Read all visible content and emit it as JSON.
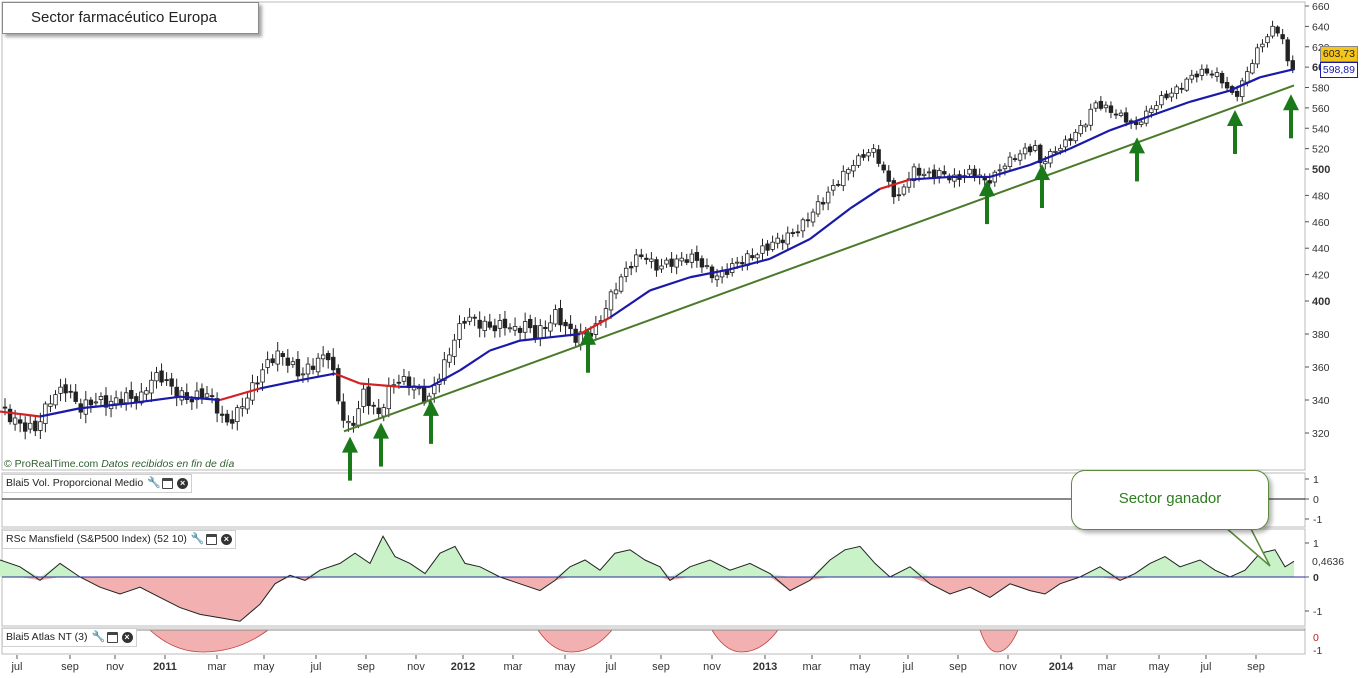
{
  "title": "Sector farmacéutico Europa",
  "copyright": {
    "brand": "© ProRealTime.com",
    "note": "Datos recibidos en fin de día"
  },
  "callout_text": "Sector ganador",
  "panels": {
    "volume": {
      "label": "Blai5 Vol. Proporcional Medio",
      "ticks": [
        "1",
        "0",
        "-1"
      ]
    },
    "mansfield": {
      "label": "RSc Mansfield (S&P500 Index) (52 10)",
      "ticks": [
        "1",
        "0",
        "-1"
      ],
      "last_value": "0,4636"
    },
    "atlas": {
      "label": "Blai5 Atlas NT (3)",
      "ticks": [
        "0",
        "-1"
      ]
    }
  },
  "price_badges": {
    "last_price": "603,73",
    "moving_average": "598,89"
  },
  "colors": {
    "up_candle": "#ffffff",
    "down_candle": "#222222",
    "ma_up": "#1a1aa8",
    "ma_down": "#d42020",
    "trendline": "#4a7a2a",
    "arrow": "#1a7a1a",
    "positive_fill": "#c9f2c9",
    "negative_fill": "#f2b0b0"
  },
  "icons": [
    "wrench-icon",
    "window-icon",
    "close-icon"
  ],
  "chart_data": {
    "type": "candlestick",
    "title": "Sector farmacéutico Europa",
    "y_ticks": [
      320,
      340,
      360,
      380,
      400,
      420,
      440,
      460,
      480,
      500,
      520,
      540,
      560,
      580,
      600,
      620,
      640,
      660
    ],
    "ylim": [
      305,
      665
    ],
    "x_ticks": [
      "jul",
      "sep",
      "nov",
      "2011",
      "mar",
      "may",
      "jul",
      "sep",
      "nov",
      "2012",
      "mar",
      "may",
      "jul",
      "sep",
      "nov",
      "2013",
      "mar",
      "may",
      "jul",
      "sep",
      "nov",
      "2014",
      "mar",
      "may",
      "jul",
      "sep"
    ],
    "price_path": [
      [
        0,
        335
      ],
      [
        10,
        330
      ],
      [
        20,
        325
      ],
      [
        35,
        322
      ],
      [
        50,
        340
      ],
      [
        65,
        348
      ],
      [
        80,
        335
      ],
      [
        95,
        340
      ],
      [
        110,
        338
      ],
      [
        125,
        342
      ],
      [
        140,
        340
      ],
      [
        150,
        352
      ],
      [
        160,
        355
      ],
      [
        175,
        345
      ],
      [
        190,
        340
      ],
      [
        205,
        345
      ],
      [
        215,
        338
      ],
      [
        225,
        325
      ],
      [
        235,
        330
      ],
      [
        250,
        345
      ],
      [
        260,
        355
      ],
      [
        270,
        365
      ],
      [
        280,
        368
      ],
      [
        290,
        362
      ],
      [
        300,
        355
      ],
      [
        310,
        360
      ],
      [
        320,
        365
      ],
      [
        330,
        368
      ],
      [
        336,
        345
      ],
      [
        343,
        330
      ],
      [
        350,
        322
      ],
      [
        357,
        332
      ],
      [
        364,
        345
      ],
      [
        371,
        337
      ],
      [
        378,
        330
      ],
      [
        385,
        340
      ],
      [
        392,
        350
      ],
      [
        400,
        352
      ],
      [
        410,
        350
      ],
      [
        420,
        345
      ],
      [
        428,
        338
      ],
      [
        435,
        350
      ],
      [
        445,
        362
      ],
      [
        455,
        378
      ],
      [
        465,
        390
      ],
      [
        475,
        388
      ],
      [
        485,
        385
      ],
      [
        495,
        384
      ],
      [
        505,
        386
      ],
      [
        515,
        382
      ],
      [
        525,
        386
      ],
      [
        535,
        380
      ],
      [
        545,
        384
      ],
      [
        555,
        392
      ],
      [
        565,
        385
      ],
      [
        575,
        378
      ],
      [
        585,
        380
      ],
      [
        595,
        382
      ],
      [
        605,
        395
      ],
      [
        615,
        410
      ],
      [
        625,
        422
      ],
      [
        635,
        432
      ],
      [
        645,
        435
      ],
      [
        655,
        425
      ],
      [
        665,
        428
      ],
      [
        675,
        430
      ],
      [
        685,
        432
      ],
      [
        695,
        433
      ],
      [
        705,
        425
      ],
      [
        715,
        418
      ],
      [
        725,
        422
      ],
      [
        735,
        428
      ],
      [
        745,
        432
      ],
      [
        755,
        435
      ],
      [
        765,
        440
      ],
      [
        775,
        445
      ],
      [
        785,
        448
      ],
      [
        795,
        452
      ],
      [
        805,
        460
      ],
      [
        815,
        470
      ],
      [
        825,
        478
      ],
      [
        835,
        488
      ],
      [
        845,
        497
      ],
      [
        855,
        507
      ],
      [
        865,
        515
      ],
      [
        875,
        518
      ],
      [
        882,
        500
      ],
      [
        890,
        488
      ],
      [
        898,
        475
      ],
      [
        905,
        490
      ],
      [
        915,
        500
      ],
      [
        925,
        495
      ],
      [
        935,
        497
      ],
      [
        945,
        496
      ],
      [
        955,
        492
      ],
      [
        965,
        496
      ],
      [
        975,
        498
      ],
      [
        985,
        490
      ],
      [
        995,
        495
      ],
      [
        1005,
        505
      ],
      [
        1015,
        512
      ],
      [
        1025,
        518
      ],
      [
        1035,
        522
      ],
      [
        1040,
        505
      ],
      [
        1045,
        510
      ],
      [
        1055,
        518
      ],
      [
        1065,
        525
      ],
      [
        1075,
        535
      ],
      [
        1085,
        545
      ],
      [
        1095,
        565
      ],
      [
        1105,
        560
      ],
      [
        1115,
        555
      ],
      [
        1125,
        550
      ],
      [
        1135,
        540
      ],
      [
        1140,
        548
      ],
      [
        1150,
        558
      ],
      [
        1160,
        568
      ],
      [
        1170,
        574
      ],
      [
        1180,
        580
      ],
      [
        1190,
        590
      ],
      [
        1200,
        595
      ],
      [
        1210,
        595
      ],
      [
        1220,
        590
      ],
      [
        1230,
        575
      ],
      [
        1235,
        570
      ],
      [
        1245,
        590
      ],
      [
        1255,
        612
      ],
      [
        1265,
        628
      ],
      [
        1275,
        640
      ],
      [
        1282,
        630
      ],
      [
        1288,
        603
      ],
      [
        1294,
        600
      ]
    ],
    "moving_average_path": [
      [
        0,
        333
      ],
      [
        40,
        330
      ],
      [
        80,
        335
      ],
      [
        130,
        338
      ],
      [
        180,
        342
      ],
      [
        220,
        340
      ],
      [
        260,
        347
      ],
      [
        300,
        352
      ],
      [
        335,
        356
      ],
      [
        360,
        350
      ],
      [
        400,
        348
      ],
      [
        430,
        348
      ],
      [
        460,
        358
      ],
      [
        490,
        370
      ],
      [
        520,
        376
      ],
      [
        550,
        378
      ],
      [
        580,
        380
      ],
      [
        610,
        390
      ],
      [
        650,
        408
      ],
      [
        690,
        418
      ],
      [
        730,
        424
      ],
      [
        770,
        432
      ],
      [
        810,
        447
      ],
      [
        850,
        470
      ],
      [
        880,
        485
      ],
      [
        910,
        492
      ],
      [
        950,
        494
      ],
      [
        990,
        494
      ],
      [
        1030,
        504
      ],
      [
        1070,
        520
      ],
      [
        1110,
        538
      ],
      [
        1150,
        552
      ],
      [
        1190,
        566
      ],
      [
        1230,
        577
      ],
      [
        1260,
        590
      ],
      [
        1294,
        598
      ]
    ],
    "trendline": {
      "start": [
        344,
        321
      ],
      "end": [
        1294,
        582
      ]
    },
    "support_arrows_x": [
      350,
      381,
      431,
      588,
      987,
      1042,
      1137,
      1235,
      1291
    ],
    "mansfield_path": [
      [
        0,
        0.5
      ],
      [
        20,
        0.3
      ],
      [
        40,
        -0.1
      ],
      [
        60,
        0.4
      ],
      [
        80,
        0
      ],
      [
        100,
        -0.3
      ],
      [
        120,
        -0.5
      ],
      [
        140,
        -0.3
      ],
      [
        160,
        -0.6
      ],
      [
        180,
        -0.9
      ],
      [
        200,
        -1.1
      ],
      [
        220,
        -1.2
      ],
      [
        240,
        -1.3
      ],
      [
        260,
        -0.8
      ],
      [
        275,
        -0.2
      ],
      [
        290,
        0.05
      ],
      [
        305,
        -0.1
      ],
      [
        320,
        0.2
      ],
      [
        340,
        0.4
      ],
      [
        355,
        0.7
      ],
      [
        370,
        0.4
      ],
      [
        383,
        1.2
      ],
      [
        395,
        0.6
      ],
      [
        410,
        0.4
      ],
      [
        425,
        0.1
      ],
      [
        440,
        0.7
      ],
      [
        455,
        0.9
      ],
      [
        465,
        0.4
      ],
      [
        480,
        0.3
      ],
      [
        500,
        0
      ],
      [
        520,
        -0.2
      ],
      [
        540,
        -0.4
      ],
      [
        555,
        -0.1
      ],
      [
        570,
        0.3
      ],
      [
        585,
        0.5
      ],
      [
        600,
        0.2
      ],
      [
        615,
        0.7
      ],
      [
        630,
        0.8
      ],
      [
        645,
        0.5
      ],
      [
        660,
        0.3
      ],
      [
        670,
        -0.1
      ],
      [
        690,
        0.3
      ],
      [
        710,
        0.5
      ],
      [
        730,
        0.2
      ],
      [
        750,
        0.4
      ],
      [
        770,
        0.1
      ],
      [
        790,
        -0.4
      ],
      [
        810,
        -0.1
      ],
      [
        830,
        0.5
      ],
      [
        845,
        0.8
      ],
      [
        860,
        0.9
      ],
      [
        875,
        0.4
      ],
      [
        890,
        0
      ],
      [
        910,
        0.3
      ],
      [
        930,
        -0.2
      ],
      [
        950,
        -0.5
      ],
      [
        970,
        -0.3
      ],
      [
        990,
        -0.6
      ],
      [
        1010,
        -0.2
      ],
      [
        1030,
        -0.4
      ],
      [
        1045,
        -0.5
      ],
      [
        1060,
        -0.2
      ],
      [
        1080,
        0
      ],
      [
        1100,
        0.3
      ],
      [
        1120,
        -0.1
      ],
      [
        1135,
        0.1
      ],
      [
        1150,
        0.4
      ],
      [
        1165,
        0.6
      ],
      [
        1180,
        0.3
      ],
      [
        1200,
        0.5
      ],
      [
        1215,
        0.2
      ],
      [
        1230,
        0
      ],
      [
        1245,
        0.2
      ],
      [
        1260,
        0.7
      ],
      [
        1275,
        0.8
      ],
      [
        1285,
        0.3
      ],
      [
        1294,
        0.46
      ]
    ],
    "atlas_segments": [
      [
        150,
        268
      ],
      [
        538,
        612
      ],
      [
        712,
        778
      ],
      [
        980,
        1018
      ]
    ]
  }
}
